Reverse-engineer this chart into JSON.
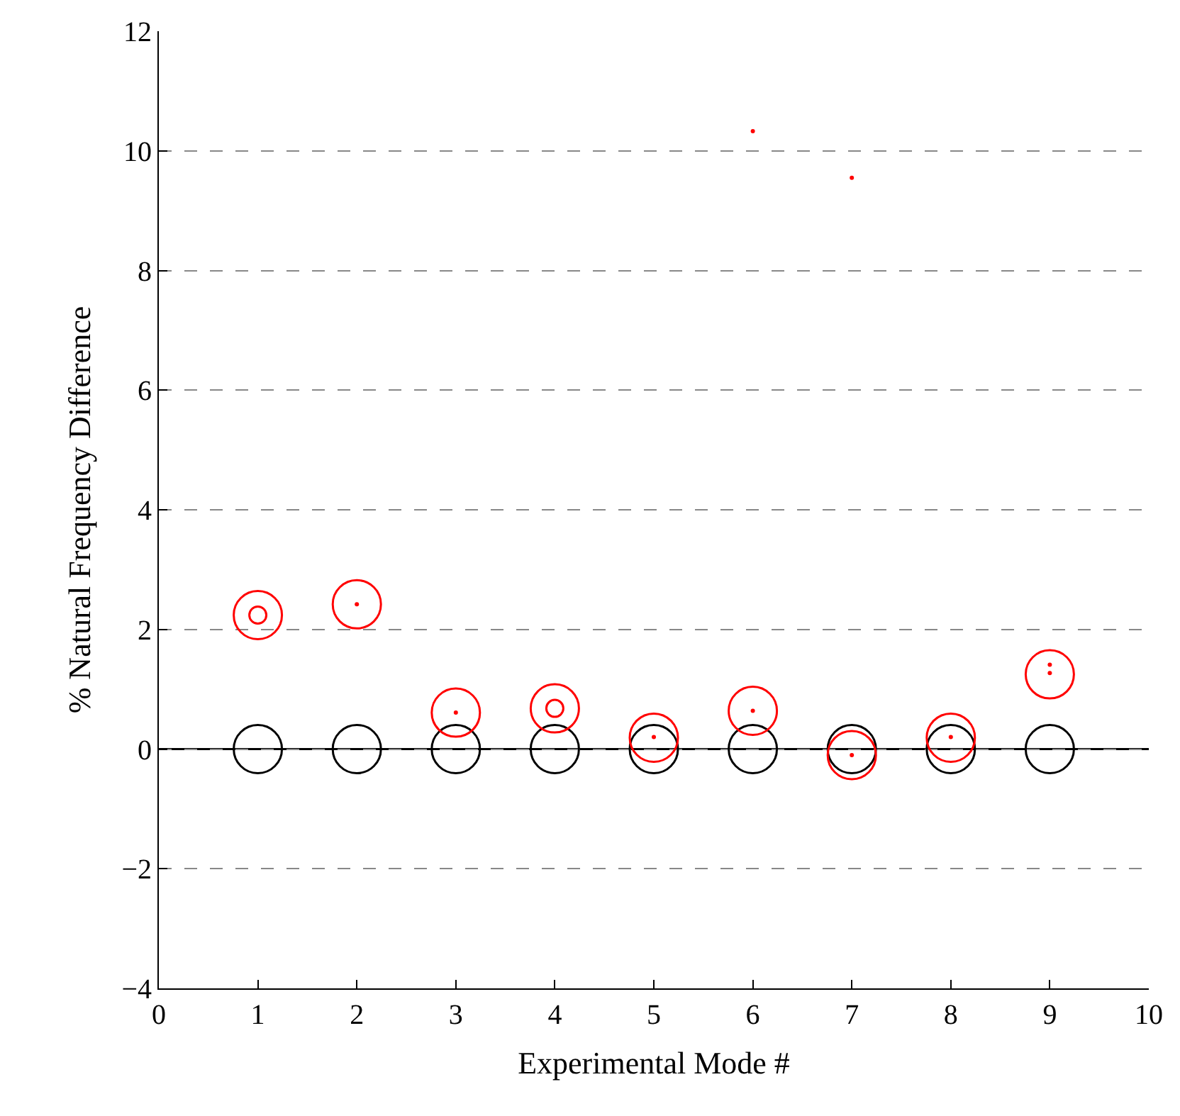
{
  "chart_data": {
    "type": "scatter",
    "xlabel": "Experimental Mode #",
    "ylabel": "% Natural Frequency Difference",
    "xlim": [
      0,
      10
    ],
    "xticks": [
      0,
      1,
      2,
      3,
      4,
      5,
      6,
      7,
      8,
      9,
      10
    ],
    "ylim": [
      -4,
      12
    ],
    "yticks": [
      -4,
      -2,
      0,
      2,
      4,
      6,
      8,
      10,
      12
    ],
    "grid": "y",
    "ref_lines": [
      {
        "axis": "y",
        "value": 0,
        "color": "#000000",
        "line_style": "solid"
      }
    ],
    "series": [
      {
        "color": "#000000",
        "marker": "circle",
        "x": [
          1,
          2,
          3,
          4,
          5,
          6,
          7,
          8,
          9
        ],
        "values": [
          0,
          0,
          0,
          0,
          0,
          0,
          0,
          0,
          0
        ]
      },
      {
        "color": "#ff0000",
        "marker": "circle",
        "x": [
          1,
          2,
          3,
          4,
          5,
          6,
          7,
          8,
          9
        ],
        "values": [
          2.24,
          2.42,
          0.61,
          0.68,
          0.19,
          0.64,
          -0.1,
          0.19,
          1.25
        ]
      },
      {
        "color": "#ff0000",
        "marker": "circle",
        "x": [
          1,
          4
        ],
        "values": [
          2.24,
          0.68
        ]
      },
      {
        "color": "#ff0000",
        "x": [
          2,
          3,
          5,
          6,
          7,
          8,
          9
        ],
        "values": [
          2.42,
          0.61,
          0.2,
          10.33,
          9.55,
          0.2,
          1.41
        ]
      },
      {
        "color": "#ff0000",
        "x": [
          6,
          7,
          9
        ],
        "values": [
          0.64,
          -0.1,
          1.27
        ]
      }
    ]
  }
}
